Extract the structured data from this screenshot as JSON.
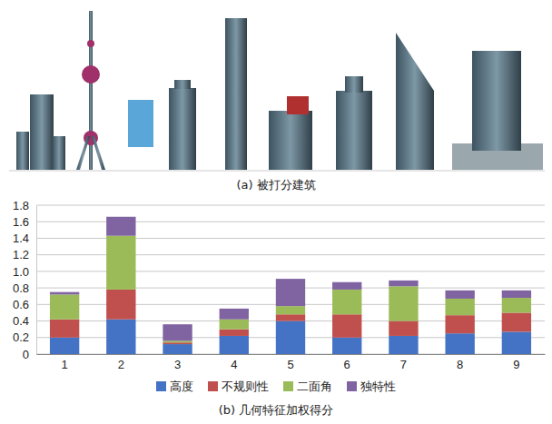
{
  "figure": {
    "panel_a_caption": "(a) 被打分建筑"
  },
  "chart_data": {
    "type": "bar",
    "stacked": true,
    "title": "(b) 几何特征加权得分",
    "categories": [
      "1",
      "2",
      "3",
      "4",
      "5",
      "6",
      "7",
      "8",
      "9"
    ],
    "series": [
      {
        "name": "高度",
        "color": "#4472c4",
        "values": [
          0.2,
          0.42,
          0.12,
          0.22,
          0.4,
          0.2,
          0.22,
          0.25,
          0.27
        ]
      },
      {
        "name": "不规则性",
        "color": "#c0504d",
        "values": [
          0.22,
          0.36,
          0.02,
          0.08,
          0.08,
          0.28,
          0.18,
          0.22,
          0.23
        ]
      },
      {
        "name": "二面角",
        "color": "#9bbb59",
        "values": [
          0.3,
          0.65,
          0.02,
          0.12,
          0.1,
          0.3,
          0.42,
          0.2,
          0.18
        ]
      },
      {
        "name": "独特性",
        "color": "#8064a2",
        "values": [
          0.03,
          0.23,
          0.2,
          0.13,
          0.33,
          0.09,
          0.07,
          0.1,
          0.09
        ]
      }
    ],
    "ylim": [
      0,
      1.8
    ],
    "yticks": [
      0,
      0.2,
      0.4,
      0.6,
      0.8,
      {
        "value": 1,
        "label": "1.0"
      },
      1.2,
      1.4,
      1.6,
      1.8
    ],
    "grid": true,
    "legend": "bottom"
  }
}
